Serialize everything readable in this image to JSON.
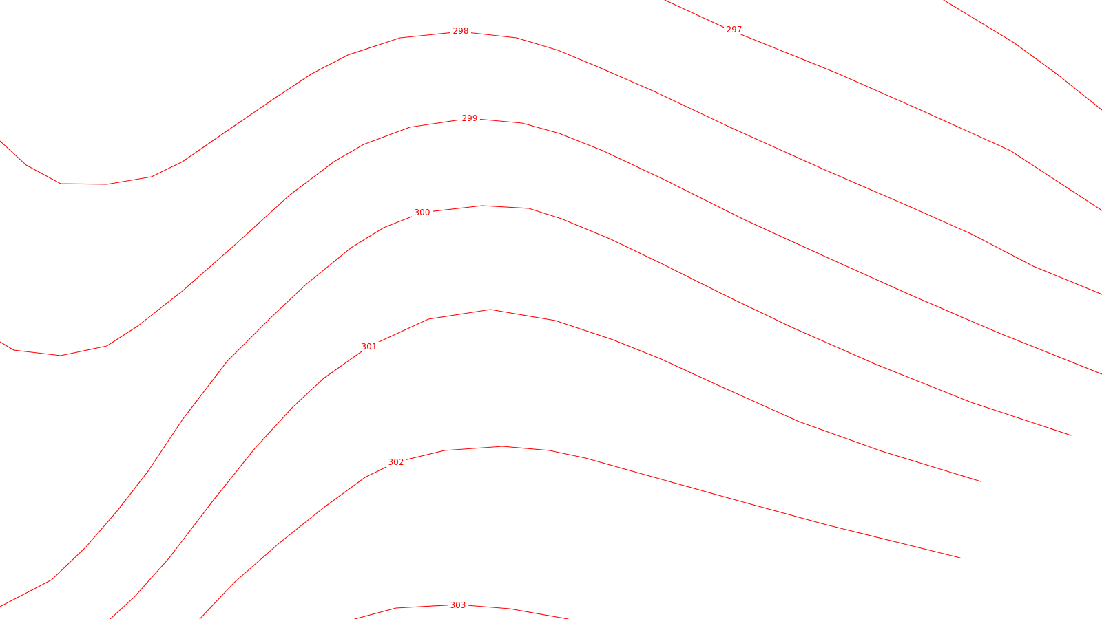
{
  "map": {
    "type": "contour",
    "line_color": "#ff0000",
    "background_color": "#ffffff",
    "contours": [
      {
        "level": "297"
      },
      {
        "level": "298"
      },
      {
        "level": "299"
      },
      {
        "level": "300"
      },
      {
        "level": "301"
      },
      {
        "level": "302"
      },
      {
        "level": "303"
      }
    ]
  }
}
